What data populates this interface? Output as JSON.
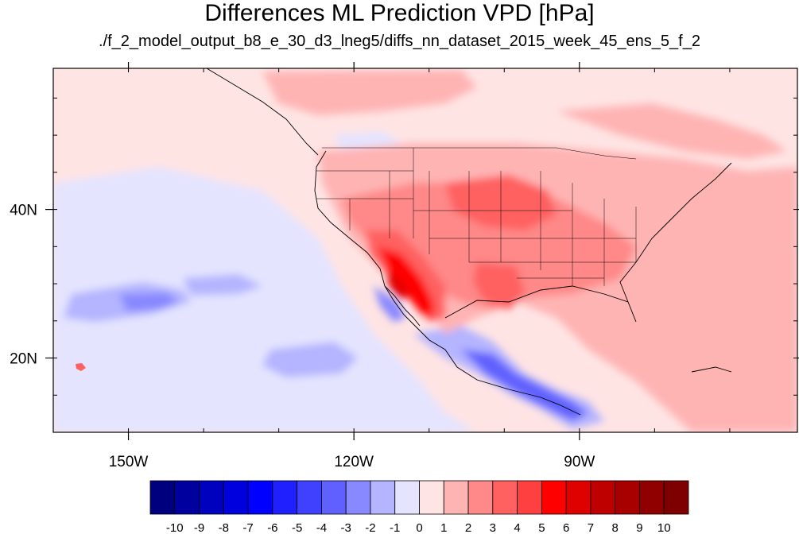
{
  "title": "Differences ML Prediction VPD [hPa]",
  "subtitle": "./f_2_model_output_b8_e_30_d3_lneg5/diffs_nn_dataset_2015_week_45_ens_5_f_2",
  "lon_ticks": [
    {
      "lon": -150,
      "label": "150W"
    },
    {
      "lon": -120,
      "label": "120W"
    },
    {
      "lon": -90,
      "label": "90W"
    }
  ],
  "lat_ticks": [
    {
      "lat": 40,
      "label": "40N"
    },
    {
      "lat": 20,
      "label": "20N"
    }
  ],
  "extent": {
    "lon_min": -160,
    "lon_max": -61,
    "lat_min": 10,
    "lat_max": 59
  },
  "colorbar": {
    "levels": [
      "-10",
      "-9",
      "-8",
      "-7",
      "-6",
      "-5",
      "-4",
      "-3",
      "-2",
      "-1",
      "0",
      "1",
      "2",
      "3",
      "4",
      "5",
      "6",
      "7",
      "8",
      "9",
      "10"
    ],
    "colors": [
      "#00007f",
      "#00009f",
      "#0000bf",
      "#0000df",
      "#0000ff",
      "#2020ff",
      "#4040ff",
      "#6060ff",
      "#8888ff",
      "#b4b4ff",
      "#e4e4ff",
      "#ffe4e4",
      "#ffb4b4",
      "#ff8888",
      "#ff6060",
      "#ff4040",
      "#ff0000",
      "#df0000",
      "#bf0000",
      "#a80000",
      "#900000",
      "#7f0000"
    ]
  }
}
